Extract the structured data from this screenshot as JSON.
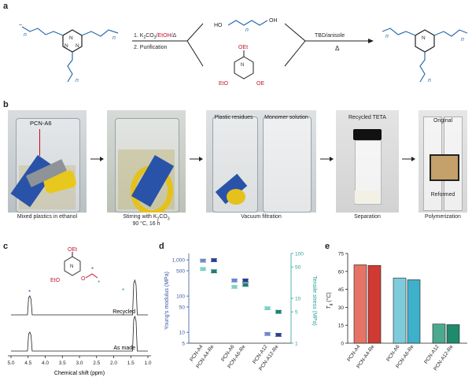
{
  "panels": {
    "a": "a",
    "b": "b",
    "c": "c",
    "d": "d",
    "e": "e"
  },
  "scheme": {
    "step1": "1. K",
    "step1_sub": "2",
    "step1_mid": "CO",
    "step1_sub2": "3",
    "step1_slash": "/",
    "step1_solvent": "EtOH",
    "step1_end": "/Δ",
    "step2": "2. Purification",
    "catalyst": "TBD/anisole",
    "heat": "Δ",
    "n": "n",
    "diol_ho": "HO",
    "diol_oh": "OH",
    "oet": "OEt",
    "eto": "EtO",
    "oe": "OE",
    "o": "O",
    "triazine_n": "N"
  },
  "photos": {
    "label_pcn": "PCN-A6",
    "label_plastic": "Plastic residues",
    "label_monomer": "Monomer solution",
    "label_teta": "Recycled TETA",
    "label_original": "Original",
    "label_reformed": "Reformed",
    "cap1": "Mixed plastics in ethanol",
    "cap2_a": "Stirring with K",
    "cap2_sub": "2",
    "cap2_b": "CO",
    "cap2_sub2": "3",
    "cap2_line2": "90 °C, 16 h",
    "cap3": "Vacuum filtration",
    "cap4": "Separation",
    "cap5": "Polymerization"
  },
  "nmr": {
    "xlabel": "Chemical shift (ppm)",
    "ticks": [
      "5.0",
      "4.5",
      "4.0",
      "3.5",
      "3.0",
      "2.5",
      "2.0",
      "1.5",
      "1.0"
    ],
    "recycled": "Recycled",
    "as_made": "As made",
    "oet": "OEt",
    "eto": "EtO",
    "o": "O",
    "n": "N"
  },
  "colors": {
    "blue_polymer": "#2b6cb0",
    "red_ethanol": "#c8102e",
    "axis_blue": "#3a56a5",
    "axis_teal": "#2aa198",
    "star_blue": "#3a56a5",
    "star_teal": "#2aa198"
  },
  "chart_data": [
    {
      "type": "scatter",
      "title": "",
      "ylabel": "Young's modulus (MPa)",
      "y2label": "Tensile stress (MPa)",
      "scale": "log",
      "ylim": [
        5,
        1500
      ],
      "y2lim": [
        1,
        100
      ],
      "yticks": [
        "1,000",
        "500",
        "100",
        "50",
        "10",
        "5"
      ],
      "y2ticks": [
        "100",
        "50",
        "10",
        "5",
        "1"
      ],
      "categories": [
        "PCN-A4",
        "PCN-A4-Re",
        "PCN-A6",
        "PCN-A6-Re",
        "PCN-A12",
        "PCN-A12-Re"
      ],
      "series": [
        {
          "axis": "left",
          "values": [
            950,
            980,
            270,
            270,
            9,
            8.5
          ]
        },
        {
          "axis": "right",
          "values": [
            45,
            40,
            18,
            20,
            6,
            5
          ]
        }
      ]
    },
    {
      "type": "bar",
      "title": "",
      "ylabel": "T",
      "ylabel_sub": "g",
      "ylabel_unit": " (°C)",
      "ylim": [
        0,
        75
      ],
      "yticks": [
        "0",
        "15",
        "30",
        "45",
        "60",
        "75"
      ],
      "categories": [
        "PCN-A4",
        "PCN-A4-Re",
        "PCN-A6",
        "PCN-A6-Re",
        "PCN-A12",
        "PCN-A12-Re"
      ],
      "values": [
        65.5,
        65,
        54.5,
        53,
        16,
        15.5
      ],
      "colors": [
        "#e57466",
        "#cf3b33",
        "#7ecbdc",
        "#3fb0c9",
        "#4aa98e",
        "#1f8a6c"
      ]
    }
  ]
}
